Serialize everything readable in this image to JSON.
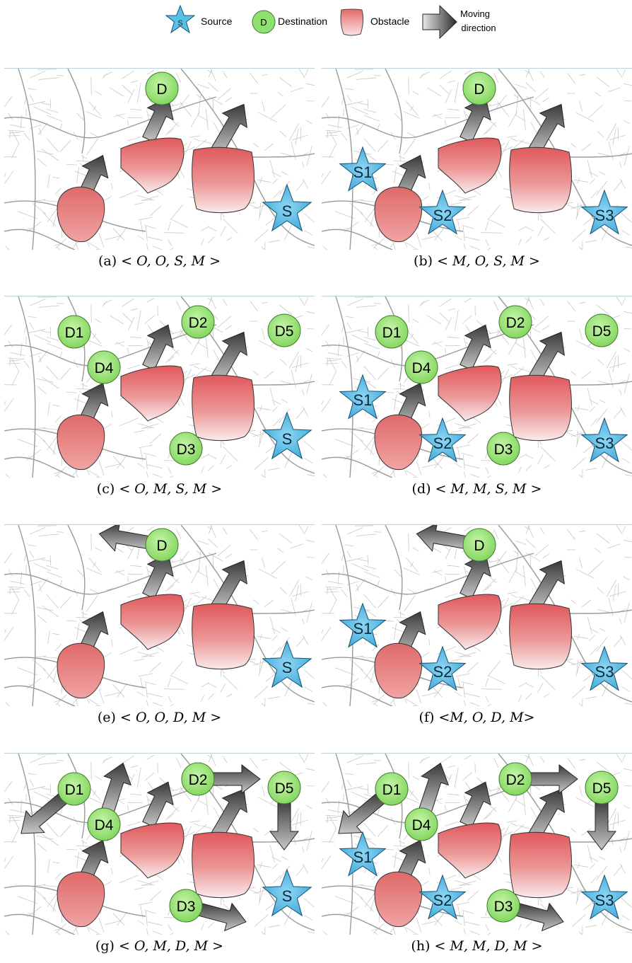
{
  "legend": {
    "source_symbol": "S",
    "source_label": "Source",
    "destination_symbol": "D",
    "destination_label": "Destination",
    "obstacle_label": "Obstacle",
    "moving_label_line1": "Moving",
    "moving_label_line2": "direction"
  },
  "colors": {
    "source_fill": "#5bc0e8",
    "destination_fill": "#90e070",
    "obstacle_fill": "#e06a6a",
    "arrow_fill": "#555555",
    "map_line": "#c8c8c8"
  },
  "panels": [
    {
      "id": "a",
      "caption_prefix": "(a)",
      "caption_math": "< O, O, S, M >",
      "sources": [
        {
          "label": "S"
        }
      ],
      "destinations": [
        {
          "label": "D"
        }
      ]
    },
    {
      "id": "b",
      "caption_prefix": "(b)",
      "caption_math": "< M, O, S, M >",
      "sources": [
        {
          "label": "S1"
        },
        {
          "label": "S2"
        },
        {
          "label": "S3"
        }
      ],
      "destinations": [
        {
          "label": "D"
        }
      ]
    },
    {
      "id": "c",
      "caption_prefix": "(c)",
      "caption_math": "< O, M, S, M >",
      "sources": [
        {
          "label": "S"
        }
      ],
      "destinations": [
        {
          "label": "D1"
        },
        {
          "label": "D2"
        },
        {
          "label": "D3"
        },
        {
          "label": "D4"
        },
        {
          "label": "D5"
        }
      ]
    },
    {
      "id": "d",
      "caption_prefix": "(d)",
      "caption_math": "< M, M, S, M >",
      "sources": [
        {
          "label": "S1"
        },
        {
          "label": "S2"
        },
        {
          "label": "S3"
        }
      ],
      "destinations": [
        {
          "label": "D1"
        },
        {
          "label": "D2"
        },
        {
          "label": "D3"
        },
        {
          "label": "D4"
        },
        {
          "label": "D5"
        }
      ]
    },
    {
      "id": "e",
      "caption_prefix": "(e)",
      "caption_math": "< O, O, D, M >",
      "sources": [
        {
          "label": "S"
        }
      ],
      "destinations": [
        {
          "label": "D"
        }
      ]
    },
    {
      "id": "f",
      "caption_prefix": "(f)",
      "caption_math": "<M,  O,  D,  M>",
      "sources": [
        {
          "label": "S1"
        },
        {
          "label": "S2"
        },
        {
          "label": "S3"
        }
      ],
      "destinations": [
        {
          "label": "D"
        }
      ]
    },
    {
      "id": "g",
      "caption_prefix": "(g)",
      "caption_math": "< O, M, D, M >",
      "sources": [
        {
          "label": "S"
        }
      ],
      "destinations": [
        {
          "label": "D1"
        },
        {
          "label": "D2"
        },
        {
          "label": "D3"
        },
        {
          "label": "D4"
        },
        {
          "label": "D5"
        }
      ]
    },
    {
      "id": "h",
      "caption_prefix": "(h)",
      "caption_math": "< M, M, D, M >",
      "sources": [
        {
          "label": "S1"
        },
        {
          "label": "S2"
        },
        {
          "label": "S3"
        }
      ],
      "destinations": [
        {
          "label": "D1"
        },
        {
          "label": "D2"
        },
        {
          "label": "D3"
        },
        {
          "label": "D4"
        },
        {
          "label": "D5"
        }
      ]
    }
  ]
}
